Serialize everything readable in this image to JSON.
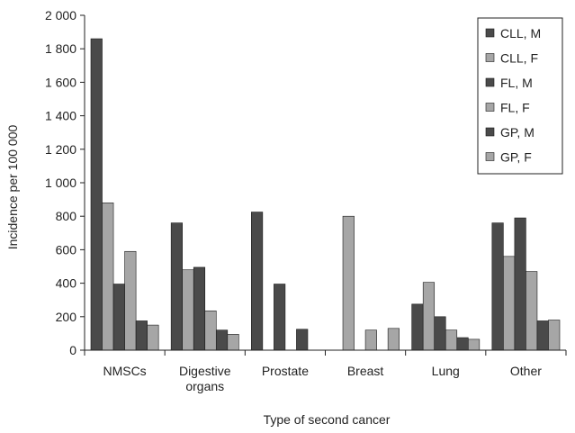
{
  "chart_data": {
    "type": "bar",
    "xlabel": "Type of second cancer",
    "ylabel": "Incidence per 100 000",
    "ylim": [
      0,
      2000
    ],
    "yticks": [
      0,
      200,
      400,
      600,
      800,
      1000,
      1200,
      1400,
      1600,
      1800,
      2000
    ],
    "ytick_labels": [
      "0",
      "200",
      "400",
      "600",
      "800",
      "1 000",
      "1 200",
      "1 400",
      "1 600",
      "1 800",
      "2 000"
    ],
    "categories": [
      [
        "NMSCs"
      ],
      [
        "Digestive",
        "organs"
      ],
      [
        "Prostate"
      ],
      [
        "Breast"
      ],
      [
        "Lung"
      ],
      [
        "Other"
      ]
    ],
    "series": [
      {
        "name": "CLL, M",
        "color": "#4a4a4a",
        "values": [
          1860,
          760,
          825,
          0,
          275,
          760
        ]
      },
      {
        "name": "CLL, F",
        "color": "#a6a6a6",
        "values": [
          880,
          480,
          0,
          800,
          405,
          560
        ]
      },
      {
        "name": "FL, M",
        "color": "#4a4a4a",
        "values": [
          395,
          495,
          395,
          0,
          200,
          790
        ]
      },
      {
        "name": "FL, F",
        "color": "#a6a6a6",
        "values": [
          590,
          235,
          0,
          120,
          120,
          470
        ]
      },
      {
        "name": "GP, M",
        "color": "#4a4a4a",
        "values": [
          175,
          120,
          125,
          0,
          75,
          175
        ]
      },
      {
        "name": "GP, F",
        "color": "#a6a6a6",
        "values": [
          150,
          95,
          0,
          130,
          65,
          180
        ]
      }
    ],
    "legend_position": "top-right",
    "grid": false
  }
}
